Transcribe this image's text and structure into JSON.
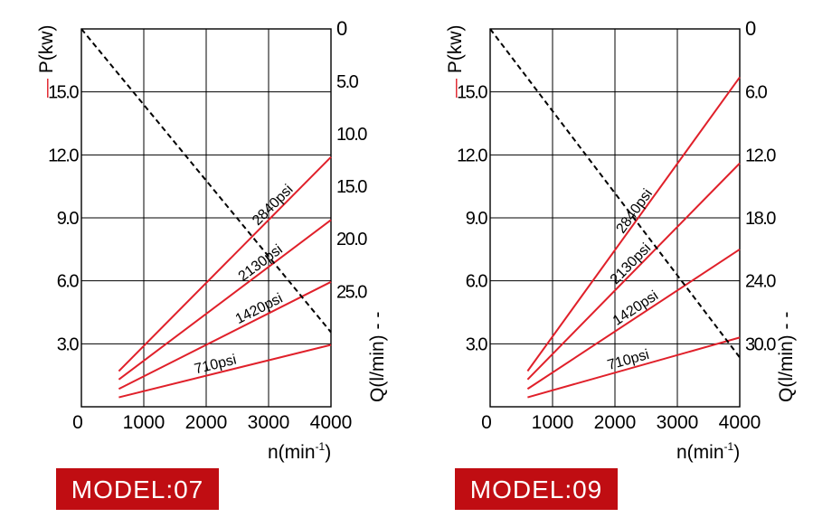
{
  "chart_data": [
    {
      "type": "line",
      "model_label": "MODEL:07",
      "x_label": "n(min",
      "x_label_sup": "-1",
      "x_label_close": ")",
      "p_label": "P(kw)",
      "p_legend": "—",
      "q_label": "Q(l/min)",
      "q_legend": "- -",
      "xlim": [
        0,
        4000
      ],
      "x_ticks": [
        "0",
        "1000",
        "2000",
        "3000",
        "4000"
      ],
      "p_ylim": [
        0,
        18
      ],
      "p_ticks": [
        {
          "value": 3,
          "label": "3.0"
        },
        {
          "value": 6,
          "label": "6.0"
        },
        {
          "value": 9,
          "label": "9.0"
        },
        {
          "value": 12,
          "label": "12.0"
        },
        {
          "value": 15,
          "label": "15.0"
        }
      ],
      "q_ylim": [
        0,
        36
      ],
      "q_inverted": true,
      "q_ticks": [
        {
          "value": 0,
          "label": "0"
        },
        {
          "value": 5,
          "label": "5.0"
        },
        {
          "value": 10,
          "label": "10.0"
        },
        {
          "value": 15,
          "label": "15.0"
        },
        {
          "value": 20,
          "label": "20.0"
        },
        {
          "value": 25,
          "label": "25.0"
        }
      ],
      "series": [
        {
          "name": "2840psi",
          "x": [
            600,
            4000
          ],
          "y": [
            1.7,
            11.9
          ]
        },
        {
          "name": "2130psi",
          "x": [
            600,
            4000
          ],
          "y": [
            1.3,
            8.9
          ]
        },
        {
          "name": "1420psi",
          "x": [
            600,
            4000
          ],
          "y": [
            0.85,
            5.95
          ]
        },
        {
          "name": "710psi",
          "x": [
            600,
            4000
          ],
          "y": [
            0.45,
            2.95
          ]
        }
      ],
      "flow": {
        "x": [
          0,
          4000
        ],
        "q": [
          0,
          28.9
        ]
      },
      "colors": {
        "power": "#e0202a",
        "flow": "#000000",
        "badge": "#c00d12"
      }
    },
    {
      "type": "line",
      "model_label": "MODEL:09",
      "x_label": "n(min",
      "x_label_sup": "-1",
      "x_label_close": ")",
      "p_label": "P(kw)",
      "p_legend": "—",
      "q_label": "Q(l/min)",
      "q_legend": "- -",
      "xlim": [
        0,
        4000
      ],
      "x_ticks": [
        "0",
        "1000",
        "2000",
        "3000",
        "4000"
      ],
      "p_ylim": [
        0,
        18
      ],
      "p_ticks": [
        {
          "value": 3,
          "label": "3.0"
        },
        {
          "value": 6,
          "label": "6.0"
        },
        {
          "value": 9,
          "label": "9.0"
        },
        {
          "value": 12,
          "label": "12.0"
        },
        {
          "value": 15,
          "label": "15.0"
        }
      ],
      "q_ylim": [
        0,
        36
      ],
      "q_inverted": true,
      "q_ticks": [
        {
          "value": 0,
          "label": "0"
        },
        {
          "value": 6,
          "label": "6.0"
        },
        {
          "value": 12,
          "label": "12.0"
        },
        {
          "value": 18,
          "label": "18.0"
        },
        {
          "value": 24,
          "label": "24.0"
        },
        {
          "value": 30,
          "label": "30.0"
        }
      ],
      "series": [
        {
          "name": "2840psi",
          "x": [
            600,
            4000
          ],
          "y": [
            1.7,
            15.7
          ]
        },
        {
          "name": "2130psi",
          "x": [
            600,
            4000
          ],
          "y": [
            1.3,
            11.6
          ]
        },
        {
          "name": "1420psi",
          "x": [
            600,
            4000
          ],
          "y": [
            0.85,
            7.5
          ]
        },
        {
          "name": "710psi",
          "x": [
            600,
            4000
          ],
          "y": [
            0.45,
            3.3
          ]
        }
      ],
      "flow": {
        "x": [
          0,
          4000
        ],
        "q": [
          0,
          31.3
        ]
      },
      "colors": {
        "power": "#e0202a",
        "flow": "#000000",
        "badge": "#c00d12"
      }
    }
  ]
}
